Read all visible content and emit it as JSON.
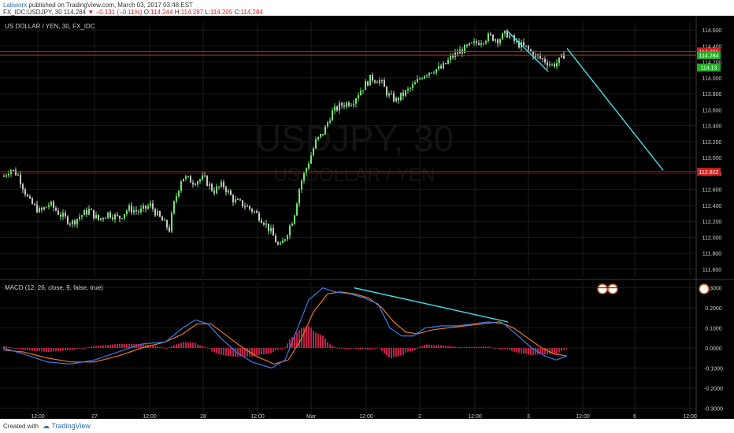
{
  "header": {
    "author": "Labworx",
    "published_text": "published on TradingView.com, March 03, 2017 03:48 EST",
    "symbol_line_prefix": "FX_IDC:USDJPY, 30",
    "last": "114.284",
    "change": "−0.131 (−0.11%)",
    "o_label": "O:",
    "o": "114.244",
    "h_label": "H:",
    "h": "114.287",
    "l_label": "L:",
    "l": "114.205",
    "c_label": "C:",
    "c": "114.284"
  },
  "footer": {
    "created_with": "Created with",
    "brand": "TradingView"
  },
  "colors": {
    "background": "#000000",
    "up_candle": "#6ee66e",
    "down_candle": "#c8c8c8",
    "hline": "#cc2020",
    "trendline": "#40e0e8",
    "macd_line": "#3a7ce8",
    "signal_line": "#e8781e",
    "histogram": "#c0204a",
    "label_red": "#d22020",
    "label_green": "#20b020",
    "axis_text": "#cccccc"
  },
  "chart_data": [
    {
      "type": "candlestick",
      "title": "US DOLLAR / YEN, 30, FX_IDC",
      "watermark_symbol": "USDJPY, 30",
      "watermark_name": "US DOLLAR / YEN",
      "ylim": [
        111.5,
        114.7
      ],
      "y_ticks": [
        "114.600",
        "114.400",
        "114.200",
        "114.000",
        "113.800",
        "113.600",
        "113.400",
        "113.200",
        "113.000",
        "112.800",
        "112.600",
        "112.400",
        "112.200",
        "112.000",
        "111.800",
        "111.600"
      ],
      "y_tick_values": [
        114.6,
        114.4,
        114.2,
        114.0,
        113.8,
        113.6,
        113.4,
        113.2,
        113.0,
        112.8,
        112.6,
        112.4,
        112.2,
        112.0,
        111.8,
        111.6
      ],
      "x_ticks": [
        "12:00",
        "27",
        "12:00",
        "28",
        "12:00",
        "Mar",
        "12:00",
        "2",
        "12:00",
        "3",
        "12:00",
        "6",
        "12:00"
      ],
      "price_path": [
        [
          0,
          112.72
        ],
        [
          12,
          112.86
        ],
        [
          22,
          112.78
        ],
        [
          36,
          112.45
        ],
        [
          50,
          112.32
        ],
        [
          62,
          112.42
        ],
        [
          76,
          112.28
        ],
        [
          90,
          112.18
        ],
        [
          100,
          112.26
        ],
        [
          112,
          112.34
        ],
        [
          124,
          112.22
        ],
        [
          136,
          112.3
        ],
        [
          150,
          112.24
        ],
        [
          162,
          112.36
        ],
        [
          176,
          112.32
        ],
        [
          190,
          112.4
        ],
        [
          202,
          112.24
        ],
        [
          214,
          112.1
        ],
        [
          220,
          112.42
        ],
        [
          230,
          112.76
        ],
        [
          244,
          112.7
        ],
        [
          258,
          112.74
        ],
        [
          270,
          112.58
        ],
        [
          282,
          112.66
        ],
        [
          296,
          112.46
        ],
        [
          310,
          112.4
        ],
        [
          322,
          112.32
        ],
        [
          334,
          112.2
        ],
        [
          344,
          112.05
        ],
        [
          354,
          111.86
        ],
        [
          362,
          112.02
        ],
        [
          372,
          112.26
        ],
        [
          380,
          112.66
        ],
        [
          390,
          112.92
        ],
        [
          400,
          113.2
        ],
        [
          410,
          113.32
        ],
        [
          420,
          113.56
        ],
        [
          432,
          113.66
        ],
        [
          446,
          113.7
        ],
        [
          458,
          113.86
        ],
        [
          470,
          114.0
        ],
        [
          482,
          113.96
        ],
        [
          492,
          113.78
        ],
        [
          502,
          113.72
        ],
        [
          512,
          113.8
        ],
        [
          524,
          113.9
        ],
        [
          536,
          114.04
        ],
        [
          548,
          114.1
        ],
        [
          560,
          114.12
        ],
        [
          572,
          114.26
        ],
        [
          584,
          114.34
        ],
        [
          596,
          114.4
        ],
        [
          608,
          114.46
        ],
        [
          620,
          114.52
        ],
        [
          632,
          114.48
        ],
        [
          642,
          114.56
        ],
        [
          654,
          114.44
        ],
        [
          666,
          114.38
        ],
        [
          678,
          114.28
        ],
        [
          690,
          114.22
        ],
        [
          700,
          114.16
        ],
        [
          708,
          114.2
        ],
        [
          716,
          114.3
        ]
      ],
      "horizontal_lines": [
        114.331,
        114.284,
        112.822
      ],
      "price_labels": [
        {
          "text": "114.331",
          "value": 114.331,
          "color": "red"
        },
        {
          "text": "114.284",
          "value": 114.284,
          "color": "green"
        },
        {
          "text": "114.13",
          "value": 114.13,
          "color": "green"
        },
        {
          "text": "112.822",
          "value": 112.822,
          "color": "red"
        }
      ],
      "trendlines": [
        {
          "x1": 645,
          "y1": 114.58,
          "x2": 696,
          "y2": 114.08
        },
        {
          "x1": 720,
          "y1": 114.37,
          "x2": 842,
          "y2": 112.84
        }
      ]
    },
    {
      "type": "line",
      "title": "MACD (12, 26, close, 9, false, true)",
      "ylim": [
        -0.33,
        0.33
      ],
      "y_ticks": [
        "0.3000",
        "0.2000",
        "0.1000",
        "0.0000",
        "-0.1000",
        "-0.2000",
        "-0.3000"
      ],
      "y_tick_values": [
        0.3,
        0.2,
        0.1,
        0.0,
        -0.1,
        -0.2,
        -0.3
      ],
      "series": [
        {
          "role": "macd",
          "points": [
            [
              4,
              0.0
            ],
            [
              30,
              -0.03
            ],
            [
              60,
              -0.07
            ],
            [
              90,
              -0.08
            ],
            [
              120,
              -0.06
            ],
            [
              150,
              -0.02
            ],
            [
              180,
              0.02
            ],
            [
              210,
              0.03
            ],
            [
              232,
              0.1
            ],
            [
              248,
              0.14
            ],
            [
              264,
              0.12
            ],
            [
              280,
              0.05
            ],
            [
              300,
              -0.02
            ],
            [
              320,
              -0.07
            ],
            [
              345,
              -0.1
            ],
            [
              362,
              -0.06
            ],
            [
              378,
              0.1
            ],
            [
              392,
              0.24
            ],
            [
              410,
              0.3
            ],
            [
              425,
              0.28
            ],
            [
              445,
              0.27
            ],
            [
              462,
              0.25
            ],
            [
              480,
              0.22
            ],
            [
              495,
              0.1
            ],
            [
              510,
              0.06
            ],
            [
              525,
              0.06
            ],
            [
              540,
              0.1
            ],
            [
              560,
              0.11
            ],
            [
              580,
              0.11
            ],
            [
              600,
              0.12
            ],
            [
              620,
              0.13
            ],
            [
              640,
              0.12
            ],
            [
              658,
              0.06
            ],
            [
              675,
              0.0
            ],
            [
              692,
              -0.04
            ],
            [
              706,
              -0.06
            ],
            [
              720,
              -0.04
            ]
          ]
        },
        {
          "role": "signal",
          "points": [
            [
              4,
              -0.01
            ],
            [
              30,
              -0.02
            ],
            [
              60,
              -0.05
            ],
            [
              90,
              -0.07
            ],
            [
              120,
              -0.07
            ],
            [
              150,
              -0.04
            ],
            [
              180,
              0.0
            ],
            [
              210,
              0.03
            ],
            [
              232,
              0.07
            ],
            [
              250,
              0.12
            ],
            [
              268,
              0.12
            ],
            [
              285,
              0.07
            ],
            [
              305,
              0.01
            ],
            [
              325,
              -0.04
            ],
            [
              348,
              -0.08
            ],
            [
              366,
              -0.06
            ],
            [
              382,
              0.04
            ],
            [
              398,
              0.18
            ],
            [
              416,
              0.27
            ],
            [
              432,
              0.28
            ],
            [
              450,
              0.27
            ],
            [
              468,
              0.25
            ],
            [
              485,
              0.2
            ],
            [
              500,
              0.13
            ],
            [
              515,
              0.08
            ],
            [
              530,
              0.07
            ],
            [
              548,
              0.09
            ],
            [
              568,
              0.1
            ],
            [
              590,
              0.11
            ],
            [
              612,
              0.12
            ],
            [
              634,
              0.13
            ],
            [
              652,
              0.1
            ],
            [
              670,
              0.05
            ],
            [
              688,
              0.0
            ],
            [
              704,
              -0.03
            ],
            [
              720,
              -0.04
            ]
          ]
        }
      ],
      "histogram_x_range": [
        4,
        720
      ],
      "trendline": {
        "x1": 450,
        "y1": 0.3,
        "x2": 645,
        "y2": 0.13
      }
    }
  ]
}
